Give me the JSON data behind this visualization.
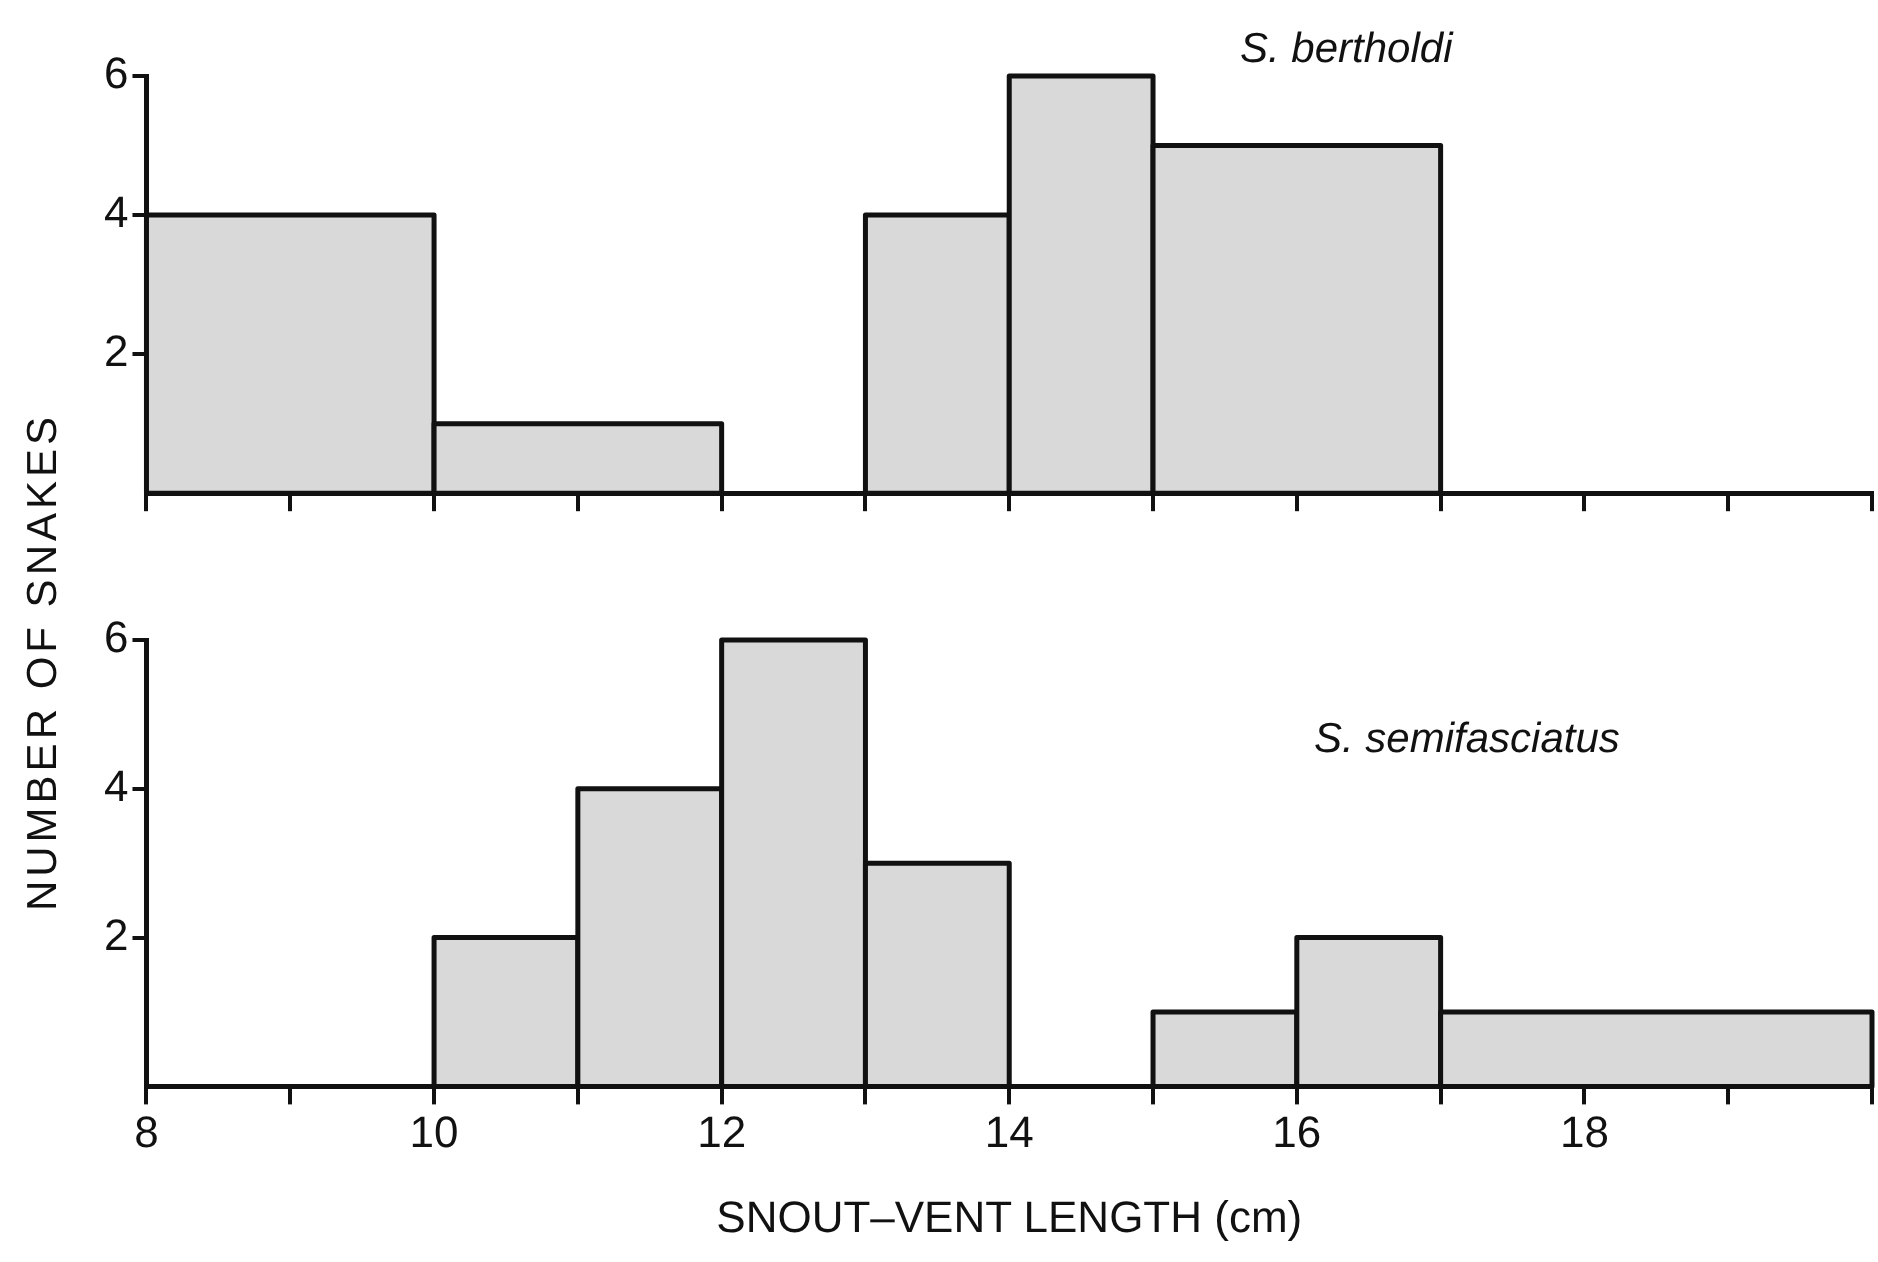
{
  "chart_data": [
    {
      "type": "histogram",
      "ylabel": "NUMBER OF SNAKES",
      "annotations": [
        "S. bertholdi"
      ],
      "bins": [
        8,
        10,
        12,
        13,
        14,
        15,
        17
      ],
      "values": [
        4,
        1,
        0,
        4,
        6,
        5
      ],
      "color": "#d9d9d9",
      "xlim": [
        8,
        20
      ],
      "xticks": [
        {
          "value": 8,
          "label": null
        },
        {
          "value": 9,
          "label": null
        },
        {
          "value": 10,
          "label": null
        },
        {
          "value": 11,
          "label": null
        },
        {
          "value": 12,
          "label": null
        },
        {
          "value": 13,
          "label": null
        },
        {
          "value": 14,
          "label": null
        },
        {
          "value": 15,
          "label": null
        },
        {
          "value": 16,
          "label": null
        },
        {
          "value": 17,
          "label": null
        },
        {
          "value": 18,
          "label": null
        },
        {
          "value": 19,
          "label": null
        },
        {
          "value": 20,
          "label": null
        }
      ],
      "ylim": [
        0,
        6
      ],
      "yticks": [
        2,
        4,
        6
      ],
      "tick_labels": "y",
      "grid": false,
      "legend": false
    },
    {
      "type": "histogram",
      "xlabel": "SNOUT–VENT LENGTH (cm)",
      "annotations": [
        "S. semifasciatus"
      ],
      "bins": [
        10,
        11,
        12,
        13,
        14,
        15,
        16,
        17,
        20
      ],
      "values": [
        2,
        4,
        6,
        3,
        0,
        1,
        2,
        1
      ],
      "color": "#d9d9d9",
      "xlim": [
        8,
        20
      ],
      "xticks": [
        8,
        {
          "value": 9,
          "label": null
        },
        10,
        {
          "value": 11,
          "label": null
        },
        12,
        {
          "value": 13,
          "label": null
        },
        14,
        {
          "value": 15,
          "label": null
        },
        16,
        {
          "value": 17,
          "label": null
        },
        18,
        {
          "value": 19,
          "label": null
        },
        {
          "value": 20,
          "label": null
        }
      ],
      "ylim": [
        0,
        6
      ],
      "yticks": [
        2,
        4,
        6
      ],
      "grid": false,
      "legend": false
    }
  ]
}
